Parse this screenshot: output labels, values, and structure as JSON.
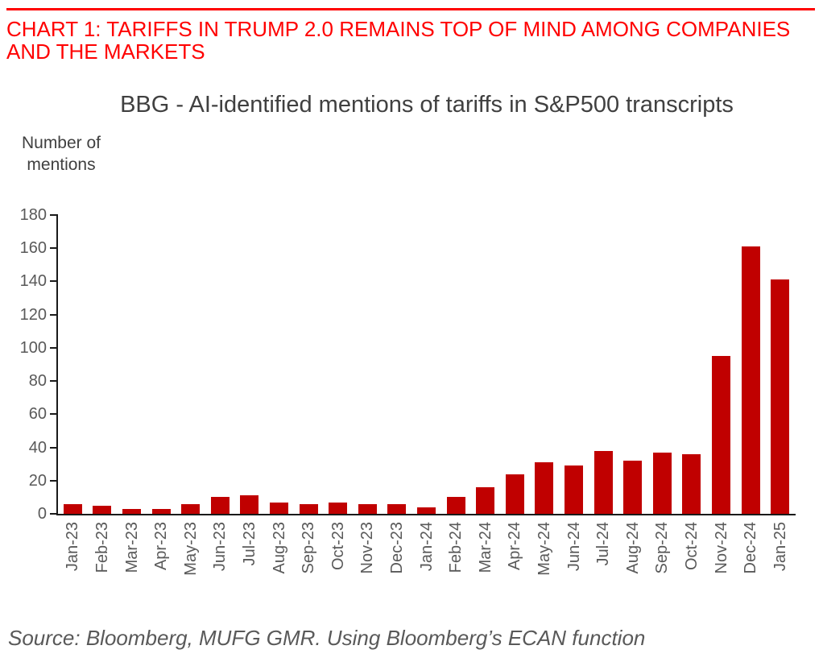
{
  "header": {
    "title": "CHART 1: TARIFFS IN TRUMP 2.0 REMAINS TOP OF MIND AMONG COMPANIES AND THE MARKETS"
  },
  "source_note": "Source: Bloomberg, MUFG GMR. Using Bloomberg’s ECAN function",
  "colors": {
    "header_red": "#FF0000",
    "bar_red": "#C00000",
    "title_gray": "#404040",
    "tick_gray": "#595959",
    "axis_black": "#1A1A1A"
  },
  "chart_data": {
    "type": "bar",
    "title": "BBG - AI-identified mentions of tariffs in S&P500 transcripts",
    "ylabel": "Number of mentions",
    "xlabel": "",
    "categories": [
      "Jan-23",
      "Feb-23",
      "Mar-23",
      "Apr-23",
      "May-23",
      "Jun-23",
      "Jul-23",
      "Aug-23",
      "Sep-23",
      "Oct-23",
      "Nov-23",
      "Dec-23",
      "Jan-24",
      "Feb-24",
      "Mar-24",
      "Apr-24",
      "May-24",
      "Jun-24",
      "Jul-24",
      "Aug-24",
      "Sep-24",
      "Oct-24",
      "Nov-24",
      "Dec-24",
      "Jan-25"
    ],
    "values": [
      6,
      5,
      3,
      3,
      6,
      10,
      11,
      7,
      6,
      7,
      6,
      6,
      4,
      10,
      16,
      24,
      31,
      29,
      38,
      32,
      37,
      36,
      95,
      161,
      141
    ],
    "ylim": [
      0,
      180
    ],
    "ytick_step": 20,
    "grid": false,
    "legend": "none",
    "bar_color": "#C00000"
  }
}
